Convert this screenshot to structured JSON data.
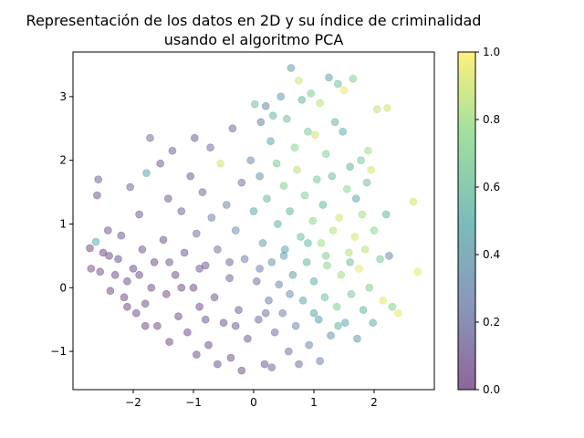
{
  "chart_data": {
    "type": "scatter",
    "title_lines": [
      "Representación de los datos en 2D y su índice de criminalidad",
      "usando el algoritmo PCA"
    ],
    "xlabel": "",
    "ylabel": "",
    "xlim": [
      -3.0,
      3.0
    ],
    "ylim": [
      -1.6,
      3.7
    ],
    "x_ticks": [
      -2,
      -1,
      0,
      1,
      2
    ],
    "y_ticks": [
      -1,
      0,
      1,
      2,
      3
    ],
    "x_tick_labels": [
      "−2",
      "−1",
      "0",
      "1",
      "2"
    ],
    "y_tick_labels": [
      "−1",
      "0",
      "1",
      "2",
      "3"
    ],
    "grid": false,
    "marker_alpha": 0.4,
    "colormap": "viridis",
    "colormap_stops": [
      "#440154",
      "#3b528b",
      "#21918c",
      "#5ec962",
      "#fde725"
    ],
    "colorbar": {
      "range": [
        0.0,
        1.0
      ],
      "ticks": [
        0.0,
        0.2,
        0.4,
        0.6,
        0.8,
        1.0
      ],
      "tick_labels": [
        "0.0",
        "0.2",
        "0.4",
        "0.6",
        "0.8",
        "1.0"
      ]
    },
    "points": [
      [
        -2.72,
        0.62,
        0.05
      ],
      [
        -2.7,
        0.3,
        0.08
      ],
      [
        -2.62,
        0.72,
        0.5
      ],
      [
        -2.6,
        1.45,
        0.1
      ],
      [
        -2.58,
        1.7,
        0.12
      ],
      [
        -2.55,
        0.25,
        0.06
      ],
      [
        -2.5,
        0.55,
        0.05
      ],
      [
        -2.42,
        0.9,
        0.1
      ],
      [
        -2.38,
        -0.05,
        0.06
      ],
      [
        -2.3,
        0.2,
        0.05
      ],
      [
        -2.25,
        0.45,
        0.07
      ],
      [
        -2.2,
        0.82,
        0.09
      ],
      [
        -2.15,
        -0.15,
        0.05
      ],
      [
        -2.1,
        0.1,
        0.06
      ],
      [
        -2.05,
        1.58,
        0.15
      ],
      [
        -2.0,
        0.3,
        0.05
      ],
      [
        -1.95,
        -0.4,
        0.05
      ],
      [
        -1.9,
        1.15,
        0.1
      ],
      [
        -1.85,
        0.6,
        0.08
      ],
      [
        -1.8,
        -0.25,
        0.06
      ],
      [
        -1.78,
        1.8,
        0.45
      ],
      [
        -1.72,
        2.35,
        0.18
      ],
      [
        -1.7,
        0.0,
        0.05
      ],
      [
        -1.65,
        0.4,
        0.06
      ],
      [
        -1.6,
        -0.6,
        0.05
      ],
      [
        -1.55,
        1.95,
        0.12
      ],
      [
        -1.5,
        0.75,
        0.08
      ],
      [
        -1.45,
        -0.1,
        0.05
      ],
      [
        -1.42,
        1.4,
        0.1
      ],
      [
        -1.35,
        2.15,
        0.12
      ],
      [
        -1.3,
        0.2,
        0.06
      ],
      [
        -1.25,
        -0.45,
        0.05
      ],
      [
        -1.2,
        1.2,
        0.15
      ],
      [
        -1.15,
        0.55,
        0.08
      ],
      [
        -1.1,
        -0.7,
        0.05
      ],
      [
        -1.05,
        1.75,
        0.1
      ],
      [
        -1.0,
        0.0,
        0.06
      ],
      [
        -0.98,
        2.35,
        0.12
      ],
      [
        -0.95,
        0.85,
        0.2
      ],
      [
        -0.9,
        -0.3,
        0.05
      ],
      [
        -0.85,
        1.5,
        0.15
      ],
      [
        -0.8,
        0.35,
        0.1
      ],
      [
        -0.75,
        -0.9,
        0.06
      ],
      [
        -0.72,
        2.2,
        0.18
      ],
      [
        -0.7,
        1.1,
        0.25
      ],
      [
        -0.65,
        -0.15,
        0.1
      ],
      [
        -0.6,
        0.6,
        0.2
      ],
      [
        -0.55,
        1.95,
        0.9
      ],
      [
        -0.5,
        -0.55,
        0.08
      ],
      [
        -0.45,
        1.3,
        0.3
      ],
      [
        -0.4,
        0.15,
        0.15
      ],
      [
        -0.38,
        -1.1,
        0.08
      ],
      [
        -0.35,
        2.5,
        0.15
      ],
      [
        -0.3,
        0.9,
        0.35
      ],
      [
        -0.25,
        -0.35,
        0.12
      ],
      [
        -0.2,
        1.65,
        0.2
      ],
      [
        -0.15,
        0.45,
        0.25
      ],
      [
        -0.1,
        -0.8,
        0.1
      ],
      [
        -0.05,
        2.0,
        0.3
      ],
      [
        0.0,
        1.2,
        0.45
      ],
      [
        0.02,
        2.88,
        0.6
      ],
      [
        0.05,
        0.1,
        0.2
      ],
      [
        0.08,
        -0.5,
        0.15
      ],
      [
        0.1,
        1.75,
        0.35
      ],
      [
        0.12,
        2.6,
        0.25
      ],
      [
        0.15,
        0.7,
        0.4
      ],
      [
        0.18,
        -1.2,
        0.1
      ],
      [
        0.2,
        2.85,
        0.3
      ],
      [
        0.22,
        1.4,
        0.55
      ],
      [
        0.25,
        -0.2,
        0.25
      ],
      [
        0.28,
        2.3,
        0.45
      ],
      [
        0.3,
        0.4,
        0.35
      ],
      [
        0.32,
        2.7,
        0.55
      ],
      [
        0.35,
        -0.7,
        0.2
      ],
      [
        0.38,
        1.95,
        0.65
      ],
      [
        0.4,
        1.0,
        0.5
      ],
      [
        0.42,
        0.05,
        0.3
      ],
      [
        0.45,
        3.0,
        0.4
      ],
      [
        0.48,
        -0.4,
        0.25
      ],
      [
        0.5,
        1.6,
        0.7
      ],
      [
        0.52,
        0.6,
        0.45
      ],
      [
        0.55,
        2.65,
        0.6
      ],
      [
        0.58,
        -1.0,
        0.2
      ],
      [
        0.6,
        1.2,
        0.55
      ],
      [
        0.62,
        3.45,
        0.4
      ],
      [
        0.65,
        0.2,
        0.4
      ],
      [
        0.68,
        2.2,
        0.75
      ],
      [
        0.7,
        -0.6,
        0.3
      ],
      [
        0.72,
        1.85,
        0.85
      ],
      [
        0.75,
        3.25,
        0.9
      ],
      [
        0.78,
        0.8,
        0.6
      ],
      [
        0.8,
        2.95,
        0.55
      ],
      [
        0.82,
        -0.2,
        0.45
      ],
      [
        0.85,
        1.45,
        0.7
      ],
      [
        0.88,
        0.4,
        0.55
      ],
      [
        0.9,
        2.45,
        0.65
      ],
      [
        0.92,
        -0.9,
        0.3
      ],
      [
        0.95,
        3.05,
        0.7
      ],
      [
        0.98,
        1.05,
        0.75
      ],
      [
        1.0,
        0.1,
        0.5
      ],
      [
        1.02,
        2.4,
        0.9
      ],
      [
        1.05,
        1.7,
        0.65
      ],
      [
        1.08,
        -0.5,
        0.4
      ],
      [
        1.1,
        2.9,
        0.85
      ],
      [
        1.12,
        0.7,
        0.8
      ],
      [
        1.15,
        1.3,
        0.55
      ],
      [
        1.18,
        -0.15,
        0.6
      ],
      [
        1.2,
        2.1,
        0.7
      ],
      [
        1.22,
        0.35,
        0.75
      ],
      [
        1.25,
        3.3,
        0.45
      ],
      [
        1.28,
        -0.75,
        0.35
      ],
      [
        1.3,
        1.75,
        0.6
      ],
      [
        1.32,
        0.9,
        0.85
      ],
      [
        1.35,
        2.6,
        0.55
      ],
      [
        1.38,
        -0.3,
        0.7
      ],
      [
        1.4,
        3.2,
        0.6
      ],
      [
        1.42,
        1.1,
        0.9
      ],
      [
        1.45,
        0.2,
        0.8
      ],
      [
        1.48,
        2.45,
        0.5
      ],
      [
        1.5,
        3.1,
        0.95
      ],
      [
        1.52,
        -0.55,
        0.45
      ],
      [
        1.55,
        1.55,
        0.75
      ],
      [
        1.58,
        0.55,
        0.85
      ],
      [
        1.6,
        1.9,
        0.55
      ],
      [
        1.62,
        -0.1,
        0.65
      ],
      [
        1.65,
        3.28,
        0.7
      ],
      [
        1.68,
        0.8,
        0.9
      ],
      [
        1.7,
        1.4,
        0.45
      ],
      [
        1.72,
        -0.8,
        0.4
      ],
      [
        1.75,
        0.3,
        0.95
      ],
      [
        1.78,
        2.0,
        0.65
      ],
      [
        1.8,
        1.15,
        0.8
      ],
      [
        1.82,
        -0.35,
        0.55
      ],
      [
        1.85,
        0.6,
        0.85
      ],
      [
        1.88,
        1.65,
        0.6
      ],
      [
        1.9,
        2.15,
        0.8
      ],
      [
        1.92,
        0.0,
        0.7
      ],
      [
        1.95,
        1.85,
        0.9
      ],
      [
        1.98,
        -0.55,
        0.5
      ],
      [
        2.0,
        0.9,
        0.75
      ],
      [
        2.05,
        2.8,
        0.85
      ],
      [
        2.1,
        0.45,
        0.65
      ],
      [
        2.15,
        -0.2,
        0.95
      ],
      [
        2.2,
        1.15,
        0.55
      ],
      [
        2.22,
        2.82,
        0.9
      ],
      [
        2.25,
        0.5,
        0.3
      ],
      [
        2.3,
        -0.3,
        0.7
      ],
      [
        2.4,
        -0.4,
        0.95
      ],
      [
        2.65,
        1.35,
        0.9
      ],
      [
        2.72,
        0.25,
        0.95
      ],
      [
        -1.4,
        -0.85,
        0.05
      ],
      [
        -0.95,
        -1.05,
        0.06
      ],
      [
        -0.6,
        -1.2,
        0.07
      ],
      [
        -0.2,
        -1.3,
        0.08
      ],
      [
        0.3,
        -1.25,
        0.15
      ],
      [
        0.75,
        -1.2,
        0.2
      ],
      [
        1.1,
        -1.15,
        0.25
      ],
      [
        -1.8,
        -0.6,
        0.05
      ],
      [
        -2.1,
        -0.3,
        0.05
      ],
      [
        -1.2,
        0.0,
        0.06
      ],
      [
        -0.8,
        -0.5,
        0.08
      ],
      [
        -0.3,
        -0.6,
        0.12
      ],
      [
        0.2,
        -0.4,
        0.2
      ],
      [
        0.6,
        -0.1,
        0.35
      ],
      [
        1.0,
        -0.4,
        0.45
      ],
      [
        1.4,
        -0.6,
        0.55
      ],
      [
        1.6,
        0.4,
        0.6
      ],
      [
        1.2,
        0.5,
        0.7
      ],
      [
        0.9,
        0.7,
        0.55
      ],
      [
        0.5,
        0.5,
        0.4
      ],
      [
        0.1,
        0.3,
        0.25
      ],
      [
        -0.4,
        0.4,
        0.15
      ],
      [
        -0.9,
        0.3,
        0.1
      ],
      [
        -1.4,
        0.4,
        0.08
      ],
      [
        -1.9,
        0.2,
        0.06
      ],
      [
        -2.4,
        0.5,
        0.05
      ]
    ]
  }
}
